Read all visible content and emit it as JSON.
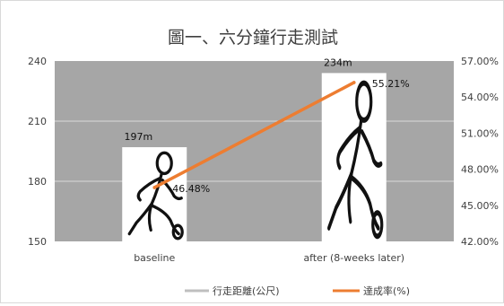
{
  "chart_data": {
    "type": "bar",
    "title": "圖一、六分鐘行走測試",
    "categories": [
      "baseline",
      "after (8-weeks later)"
    ],
    "series": [
      {
        "name": "行走距離(公尺)",
        "type": "bar",
        "axis": "left",
        "values": [
          197,
          234
        ],
        "labels": [
          "197m",
          "234m"
        ]
      },
      {
        "name": "達成率(%)",
        "type": "line",
        "axis": "right",
        "values": [
          46.48,
          55.21
        ],
        "labels": [
          "46.48%",
          "55.21%"
        ]
      }
    ],
    "y_left": {
      "min": 150,
      "max": 240,
      "ticks": [
        "150",
        "180",
        "210",
        "240"
      ]
    },
    "y_right": {
      "min": 42,
      "max": 57,
      "ticks": [
        "42.00%",
        "45.00%",
        "48.00%",
        "51.00%",
        "54.00%",
        "57.00%"
      ]
    },
    "legend_position": "bottom",
    "colors": {
      "plot_bg": "#a6a6a6",
      "bar_fill": "#ffffff",
      "line": "#ed7d31",
      "grid": "#d9d9d9",
      "text": "#404040"
    },
    "bar_decoration": "walking-stick-figure-icon"
  }
}
